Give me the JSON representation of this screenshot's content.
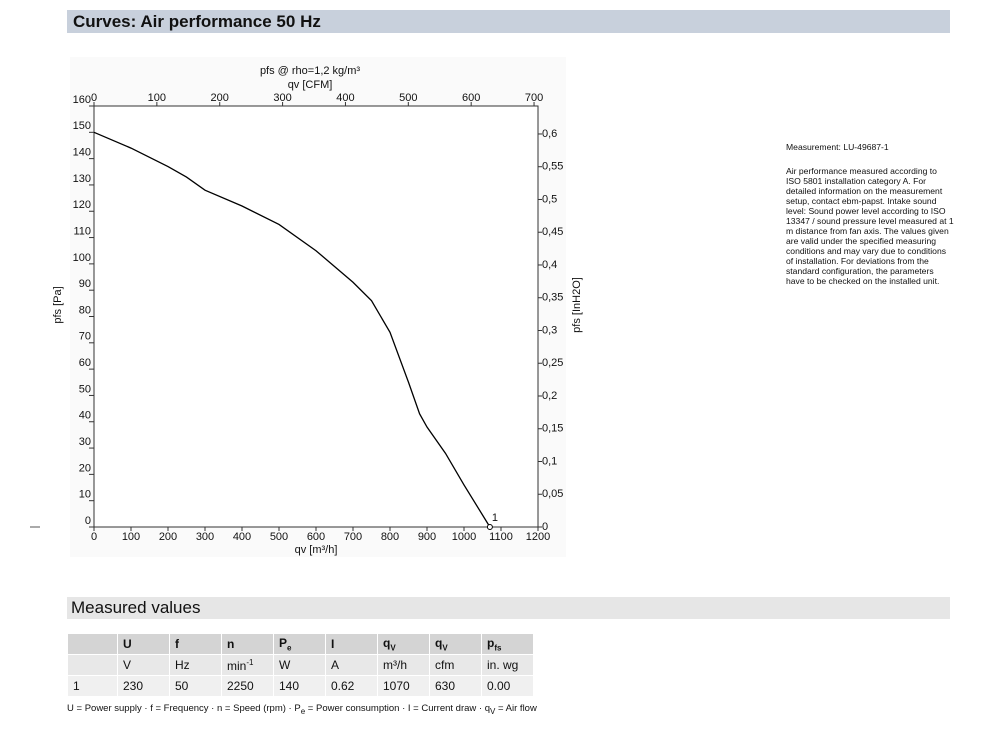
{
  "header": {
    "title": "Curves: Air performance 50 Hz"
  },
  "chart_data": {
    "type": "line",
    "title": "pfs @ rho=1,2 kg/m³",
    "x2_label": "qv [CFM]",
    "x_label": "qv [m³/h]",
    "y_label": "pfs [Pa]",
    "y2_label": "pfs [InH2O]",
    "x": [
      0,
      100,
      200,
      250,
      300,
      400,
      500,
      600,
      700,
      750,
      800,
      850,
      880,
      900,
      950,
      1000,
      1070
    ],
    "values": [
      150,
      144,
      137,
      133,
      128,
      122,
      115,
      105,
      93,
      86,
      74,
      55,
      43,
      38,
      28,
      16,
      0
    ],
    "color": "#000000",
    "xlim": [
      0,
      1200
    ],
    "xticks": [
      0,
      100,
      200,
      300,
      400,
      500,
      600,
      700,
      800,
      900,
      1000,
      1100,
      1200
    ],
    "ylim": [
      0,
      160
    ],
    "yticks": [
      0,
      10,
      20,
      30,
      40,
      50,
      60,
      70,
      80,
      90,
      100,
      110,
      120,
      130,
      140,
      150,
      160
    ],
    "x2lim": [
      0,
      706.3
    ],
    "x2ticks": [
      0,
      100,
      200,
      300,
      400,
      500,
      600,
      700
    ],
    "y2lim": [
      0,
      0.6427
    ],
    "y2ticks": [
      0,
      {
        "value": 0.05,
        "label": "0,05"
      },
      {
        "value": 0.1,
        "label": "0,1"
      },
      {
        "value": 0.15,
        "label": "0,15"
      },
      {
        "value": 0.2,
        "label": "0,2"
      },
      {
        "value": 0.25,
        "label": "0,25"
      },
      {
        "value": 0.3,
        "label": "0,3"
      },
      {
        "value": 0.35,
        "label": "0,35"
      },
      {
        "value": 0.4,
        "label": "0,4"
      },
      {
        "value": 0.45,
        "label": "0,45"
      },
      {
        "value": 0.5,
        "label": "0,5"
      },
      {
        "value": 0.55,
        "label": "0,55"
      },
      {
        "value": 0.6,
        "label": "0,6"
      }
    ],
    "grid": false,
    "points": [
      {
        "label": "1",
        "x": 1070,
        "y": 0
      }
    ]
  },
  "notes": {
    "measurement": "Measurement: LU-49687-1",
    "description": "Air performance measured according to ISO 5801 installation category A. For detailed information on the measurement setup, contact ebm-papst. Intake sound level: Sound power level according to ISO 13347 / sound pressure level measured at 1 m distance from fan axis. The values given are valid under the specified measuring conditions and may vary due to conditions of installation. For deviations from the standard configuration, the parameters have to be checked on the installed unit."
  },
  "section": {
    "title": "Measured values"
  },
  "table": {
    "header": [
      {
        "symbol": "U"
      },
      {
        "symbol": "f"
      },
      {
        "symbol": "n"
      },
      {
        "symbol": "P",
        "sub": "e"
      },
      {
        "symbol": "I"
      },
      {
        "symbol": "q",
        "sub": "V"
      },
      {
        "symbol": "q",
        "sub": "V"
      },
      {
        "symbol": "p",
        "sub": "fs"
      }
    ],
    "units": [
      "V",
      "Hz",
      {
        "text": "min",
        "sup": "-1"
      },
      "W",
      "A",
      "m³/h",
      "cfm",
      "in. wg"
    ],
    "rows": [
      [
        "1",
        "230",
        "50",
        "2250",
        "140",
        "0.62",
        "1070",
        "630",
        "0.00"
      ]
    ]
  },
  "footnote": {
    "separator": " · ",
    "items": [
      {
        "symbol": "U",
        "text": " = Power supply"
      },
      {
        "symbol": "f",
        "text": " = Frequency"
      },
      {
        "symbol": "n",
        "text": " = Speed (rpm)"
      },
      {
        "symbol": "P",
        "sub": "e",
        "text": " = Power consumption"
      },
      {
        "symbol": "I",
        "text": " = Current draw"
      },
      {
        "symbol": "q",
        "sub": "V",
        "text": " = Air flow"
      }
    ]
  }
}
